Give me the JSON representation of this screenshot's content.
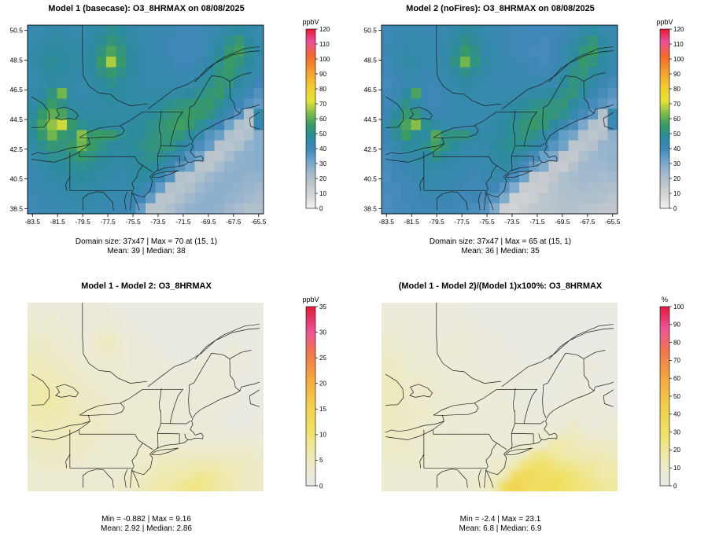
{
  "chart_data": {
    "type": "heatmap",
    "description": "2x2 panel spatial comparison of 8-hr max ozone between two model runs over the northeastern US",
    "lon_range": [
      -83.5,
      -65.5
    ],
    "lat_range": [
      38.5,
      50.5
    ],
    "x_ticks": [
      -83.5,
      -81.5,
      -79.5,
      -77.5,
      -75.5,
      -73.5,
      -71.5,
      -69.5,
      -67.5,
      -65.5
    ],
    "y_ticks": [
      38.5,
      40.5,
      42.5,
      44.5,
      46.5,
      48.5,
      50.5
    ],
    "domain_size_label": "37x47",
    "grids": {
      "model1": [
        [
          43,
          44,
          45,
          45,
          44,
          44,
          45,
          47,
          50,
          48,
          45,
          44,
          43,
          42,
          42,
          41,
          41,
          41,
          42,
          44,
          46,
          48,
          45,
          43
        ],
        [
          44,
          45,
          46,
          46,
          45,
          45,
          46,
          49,
          53,
          50,
          46,
          44,
          43,
          42,
          41,
          41,
          40,
          41,
          43,
          46,
          50,
          54,
          48,
          44
        ],
        [
          45,
          46,
          48,
          47,
          46,
          45,
          47,
          52,
          58,
          53,
          47,
          45,
          43,
          42,
          41,
          40,
          40,
          41,
          44,
          48,
          54,
          57,
          50,
          45
        ],
        [
          45,
          47,
          49,
          48,
          46,
          46,
          48,
          56,
          67,
          55,
          48,
          45,
          44,
          43,
          42,
          41,
          40,
          42,
          45,
          50,
          56,
          53,
          48,
          44
        ],
        [
          44,
          46,
          48,
          47,
          45,
          45,
          47,
          51,
          55,
          51,
          47,
          45,
          44,
          43,
          43,
          42,
          42,
          43,
          47,
          52,
          55,
          50,
          46,
          43
        ],
        [
          44,
          45,
          47,
          46,
          45,
          44,
          46,
          48,
          50,
          48,
          46,
          45,
          44,
          44,
          44,
          44,
          44,
          46,
          50,
          54,
          52,
          47,
          43,
          40
        ],
        [
          45,
          47,
          52,
          62,
          46,
          44,
          45,
          47,
          48,
          47,
          46,
          45,
          45,
          45,
          46,
          47,
          48,
          50,
          53,
          55,
          49,
          44,
          40,
          37
        ],
        [
          46,
          50,
          56,
          51,
          46,
          45,
          45,
          46,
          47,
          46,
          46,
          46,
          47,
          48,
          50,
          52,
          53,
          54,
          55,
          50,
          45,
          40,
          37,
          34
        ],
        [
          48,
          55,
          60,
          58,
          50,
          46,
          46,
          46,
          46,
          46,
          46,
          47,
          48,
          50,
          53,
          55,
          56,
          55,
          52,
          46,
          41,
          36,
          20,
          44
        ],
        [
          50,
          58,
          65,
          70,
          55,
          50,
          48,
          47,
          46,
          46,
          47,
          48,
          50,
          52,
          55,
          57,
          55,
          50,
          45,
          40,
          32,
          20,
          18,
          42
        ],
        [
          48,
          55,
          62,
          55,
          52,
          64,
          55,
          56,
          55,
          50,
          48,
          49,
          51,
          53,
          54,
          53,
          48,
          44,
          36,
          33,
          20,
          18,
          20,
          28
        ],
        [
          46,
          50,
          54,
          52,
          55,
          62,
          56,
          52,
          48,
          47,
          48,
          50,
          52,
          53,
          52,
          48,
          44,
          38,
          34,
          19,
          18,
          20,
          26,
          28
        ],
        [
          44,
          47,
          50,
          50,
          52,
          55,
          52,
          49,
          47,
          46,
          47,
          49,
          51,
          50,
          46,
          42,
          36,
          32,
          18,
          17,
          22,
          26,
          27,
          28
        ],
        [
          43,
          45,
          47,
          48,
          49,
          50,
          49,
          47,
          46,
          45,
          46,
          48,
          49,
          46,
          42,
          36,
          32,
          18,
          17,
          22,
          26,
          27,
          27,
          28
        ],
        [
          42,
          44,
          45,
          46,
          47,
          48,
          47,
          46,
          45,
          44,
          45,
          47,
          46,
          42,
          36,
          19,
          18,
          20,
          24,
          26,
          27,
          27,
          26,
          26
        ],
        [
          42,
          43,
          44,
          45,
          46,
          46,
          46,
          45,
          44,
          44,
          44,
          44,
          40,
          34,
          19,
          18,
          20,
          24,
          26,
          27,
          27,
          26,
          25,
          24
        ],
        [
          41,
          42,
          43,
          44,
          45,
          45,
          45,
          44,
          43,
          43,
          42,
          40,
          34,
          18,
          17,
          20,
          24,
          26,
          27,
          27,
          26,
          25,
          23,
          22
        ],
        [
          41,
          42,
          42,
          43,
          44,
          44,
          44,
          43,
          42,
          42,
          40,
          34,
          18,
          17,
          20,
          24,
          26,
          27,
          27,
          26,
          24,
          22,
          20,
          20
        ]
      ],
      "diff": [
        [
          2,
          2,
          2,
          2,
          2,
          2,
          2,
          2,
          2,
          1,
          1,
          1,
          1,
          1,
          1,
          1,
          1,
          1,
          1,
          1,
          1,
          1,
          1,
          1
        ],
        [
          3,
          3,
          3,
          2,
          2,
          2,
          2,
          2,
          2,
          2,
          1,
          1,
          1,
          1,
          1,
          1,
          1,
          1,
          1,
          1,
          1,
          1,
          1,
          1
        ],
        [
          3,
          3,
          3,
          3,
          2,
          2,
          2,
          3,
          3,
          2,
          2,
          1,
          1,
          1,
          1,
          1,
          1,
          1,
          1,
          1,
          1,
          1,
          1,
          1
        ],
        [
          4,
          4,
          3,
          3,
          3,
          2,
          3,
          4,
          5,
          3,
          2,
          2,
          1,
          1,
          1,
          1,
          1,
          1,
          1,
          1,
          1,
          1,
          1,
          1
        ],
        [
          4,
          4,
          4,
          3,
          3,
          3,
          3,
          4,
          4,
          3,
          2,
          2,
          2,
          1,
          1,
          1,
          1,
          1,
          1,
          1,
          2,
          2,
          1,
          1
        ],
        [
          5,
          5,
          4,
          4,
          3,
          3,
          3,
          3,
          3,
          3,
          2,
          2,
          2,
          2,
          1,
          1,
          1,
          2,
          2,
          2,
          2,
          2,
          1,
          1
        ],
        [
          5,
          5,
          5,
          4,
          4,
          3,
          3,
          3,
          3,
          3,
          2,
          2,
          2,
          2,
          2,
          2,
          2,
          2,
          2,
          2,
          2,
          2,
          1,
          1
        ],
        [
          6,
          6,
          5,
          5,
          4,
          4,
          3,
          3,
          3,
          3,
          3,
          2,
          2,
          2,
          2,
          2,
          2,
          2,
          2,
          2,
          2,
          1,
          1,
          1
        ],
        [
          6,
          7,
          6,
          5,
          5,
          4,
          4,
          3,
          3,
          3,
          3,
          3,
          2,
          2,
          2,
          2,
          2,
          2,
          2,
          2,
          2,
          1,
          1,
          1
        ],
        [
          6,
          7,
          7,
          6,
          5,
          4,
          4,
          4,
          3,
          3,
          3,
          3,
          3,
          2,
          2,
          2,
          2,
          2,
          2,
          2,
          2,
          1,
          1,
          1
        ],
        [
          6,
          6,
          6,
          6,
          5,
          5,
          4,
          4,
          3,
          3,
          3,
          3,
          3,
          3,
          2,
          2,
          2,
          2,
          2,
          2,
          1,
          1,
          1,
          1
        ],
        [
          5,
          6,
          6,
          5,
          5,
          5,
          4,
          4,
          3,
          3,
          3,
          3,
          3,
          3,
          3,
          2,
          2,
          2,
          2,
          2,
          1,
          1,
          1,
          2
        ],
        [
          5,
          5,
          5,
          5,
          5,
          4,
          4,
          4,
          3,
          3,
          3,
          3,
          3,
          3,
          3,
          3,
          3,
          2,
          2,
          2,
          2,
          2,
          2,
          2
        ],
        [
          4,
          5,
          5,
          4,
          4,
          4,
          4,
          3,
          3,
          3,
          3,
          3,
          3,
          3,
          3,
          3,
          3,
          3,
          3,
          3,
          3,
          3,
          3,
          3
        ],
        [
          4,
          4,
          4,
          4,
          4,
          4,
          3,
          3,
          3,
          3,
          3,
          3,
          4,
          4,
          4,
          4,
          4,
          4,
          4,
          4,
          4,
          4,
          4,
          3
        ],
        [
          3,
          4,
          4,
          4,
          3,
          3,
          3,
          3,
          3,
          3,
          3,
          4,
          4,
          5,
          5,
          5,
          6,
          6,
          6,
          6,
          5,
          5,
          4,
          4
        ],
        [
          3,
          3,
          3,
          3,
          3,
          3,
          3,
          3,
          3,
          3,
          4,
          4,
          5,
          6,
          6,
          7,
          7,
          8,
          8,
          7,
          6,
          5,
          4,
          4
        ],
        [
          3,
          3,
          3,
          3,
          3,
          3,
          3,
          3,
          3,
          4,
          4,
          5,
          6,
          7,
          7,
          8,
          9,
          9,
          8,
          7,
          6,
          5,
          4,
          4
        ]
      ]
    },
    "derived_grids": {
      "model2": "model1 - diff",
      "pct": "diff / model1 * 100"
    },
    "scales": {
      "conc": {
        "min": 0,
        "max": 120,
        "unit": "ppbV",
        "ticks": [
          0,
          10,
          20,
          30,
          40,
          50,
          60,
          70,
          80,
          90,
          100,
          110,
          120
        ],
        "stops": [
          [
            0,
            "#F2F2F2"
          ],
          [
            8,
            "#D8D8D8"
          ],
          [
            16,
            "#BFC7CC"
          ],
          [
            24,
            "#9FB8CE"
          ],
          [
            32,
            "#6FA3C9"
          ],
          [
            40,
            "#3F87B8"
          ],
          [
            48,
            "#2C8C9E"
          ],
          [
            56,
            "#389A64"
          ],
          [
            64,
            "#84BE48"
          ],
          [
            72,
            "#E6E335"
          ],
          [
            82,
            "#F2C930"
          ],
          [
            92,
            "#F49B2D"
          ],
          [
            102,
            "#F2682C"
          ],
          [
            112,
            "#EC4D9B"
          ],
          [
            120,
            "#E8192C"
          ]
        ]
      },
      "diff": {
        "min": 0,
        "max": 35,
        "unit": "ppbV",
        "ticks": [
          0,
          5,
          10,
          15,
          20,
          25,
          30,
          35
        ],
        "stops": [
          [
            0,
            "#E9E9E9"
          ],
          [
            3,
            "#ECEBD2"
          ],
          [
            7,
            "#EFE8A6"
          ],
          [
            11,
            "#F0E163"
          ],
          [
            16,
            "#F2CD4B"
          ],
          [
            21,
            "#F4A73E"
          ],
          [
            26,
            "#F0764F"
          ],
          [
            30,
            "#EC5497"
          ],
          [
            35,
            "#E3193C"
          ]
        ]
      },
      "pct": {
        "min": 0,
        "max": 100,
        "unit": "%",
        "ticks": [
          0,
          10,
          20,
          30,
          40,
          50,
          60,
          70,
          80,
          90,
          100
        ],
        "stops": [
          [
            0,
            "#E9E9E9"
          ],
          [
            8,
            "#ECEBD2"
          ],
          [
            18,
            "#EFE8A6"
          ],
          [
            30,
            "#F0E163"
          ],
          [
            45,
            "#F2CD4B"
          ],
          [
            60,
            "#F4A73E"
          ],
          [
            75,
            "#F0764F"
          ],
          [
            88,
            "#EC5497"
          ],
          [
            100,
            "#E3193C"
          ]
        ]
      }
    },
    "panels": [
      {
        "key": "model1",
        "title": "Model 1 (basecase): O3_8HRMAX on 08/08/2025",
        "grid": "model1",
        "scale": "conc",
        "show_axes": true,
        "smooth": false,
        "colorbar_label": "ppbV",
        "stats_line1": "Domain size: 37x47 | Max = 70 at (15, 1)",
        "stats_line2": "Mean: 39 |  Median: 38"
      },
      {
        "key": "model2",
        "title": "Model 2 (noFires): O3_8HRMAX on 08/08/2025",
        "grid": "model2",
        "scale": "conc",
        "show_axes": true,
        "smooth": false,
        "colorbar_label": "ppbV",
        "stats_line1": "Domain size: 37x47 | Max = 65 at (15, 1)",
        "stats_line2": "Mean: 36 |  Median: 35"
      },
      {
        "key": "diff",
        "title": "Model 1 - Model 2: O3_8HRMAX",
        "grid": "diff",
        "scale": "diff",
        "show_axes": false,
        "smooth": true,
        "colorbar_label": "ppbV",
        "stats_line1": "Min = -0.882 | Max = 9.16",
        "stats_line2": "Mean: 2.92 |  Median: 2.86"
      },
      {
        "key": "pct",
        "title": "(Model 1 - Model 2)/(Model 1)x100%: O3_8HRMAX",
        "grid": "pct",
        "scale": "pct",
        "show_axes": false,
        "smooth": true,
        "colorbar_label": "%",
        "stats_line1": "Min = -2.4 | Max = 23.1",
        "stats_line2": "Mean: 6.8 |  Median: 6.9"
      }
    ]
  }
}
